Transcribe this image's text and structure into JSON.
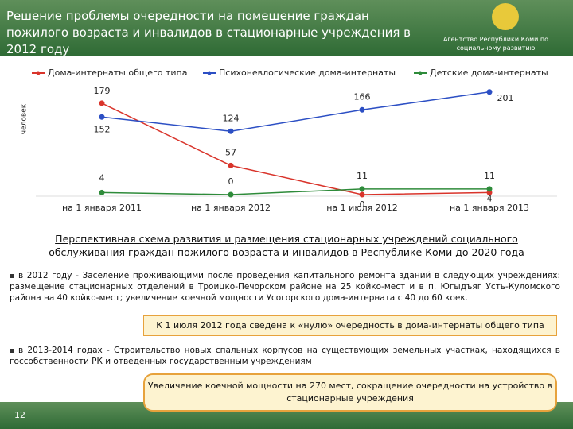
{
  "header": {
    "title": "Решение проблемы очередности на помещение граждан пожилого возраста и инвалидов в стационарные учреждения в 2012 году",
    "agency": "Агентство Республики Коми по социальному развитию"
  },
  "chart_data": {
    "type": "line",
    "y_label": "человек",
    "categories": [
      "на 1 января 2011",
      "на 1 января 2012",
      "на 1 июля 2012",
      "на 1 января 2013"
    ],
    "series": [
      {
        "name": "Дома-интернаты общего типа",
        "color": "#d9342b",
        "values": [
          179,
          57,
          0,
          4
        ]
      },
      {
        "name": "Психоневлогические дома-интернаты",
        "color": "#2c4fc4",
        "values": [
          152,
          124,
          166,
          201
        ]
      },
      {
        "name": "Детские дома-интернаты",
        "color": "#2e8b3a",
        "values": [
          4,
          0,
          11,
          11
        ]
      }
    ],
    "ylim": [
      0,
      210
    ],
    "legend": "top"
  },
  "body": {
    "heading": "Перспективная схема развития и размещения стационарных учреждений социального обслуживания граждан пожилого возраста и инвалидов в Республике Коми до 2020 года",
    "para1": "в 2012 году - Заселение проживающими после проведения капитального ремонта зданий в следующих учреждениях: размещение стационарных отделений в Троицко-Печорском районе на 25 койко-мест и в п. Югыдъяг Усть-Куломского района на 40 койко-мест; увеличение коечной мощности Усогорского дома-интерната с 40 до 60 коек.",
    "box1": "К 1 июля 2012 года сведена к «нулю» очередность в дома-интернаты общего типа",
    "para2": "в 2013-2014 годах - Строительство новых спальных корпусов на существующих земельных участках, находящихся в госсобственности РК и отведенных государственным учреждениям",
    "box2": "Увеличение коечной мощности на 270 мест, сокращение очередности на устройство в стационарные учреждения"
  },
  "footer": {
    "page": "12"
  }
}
